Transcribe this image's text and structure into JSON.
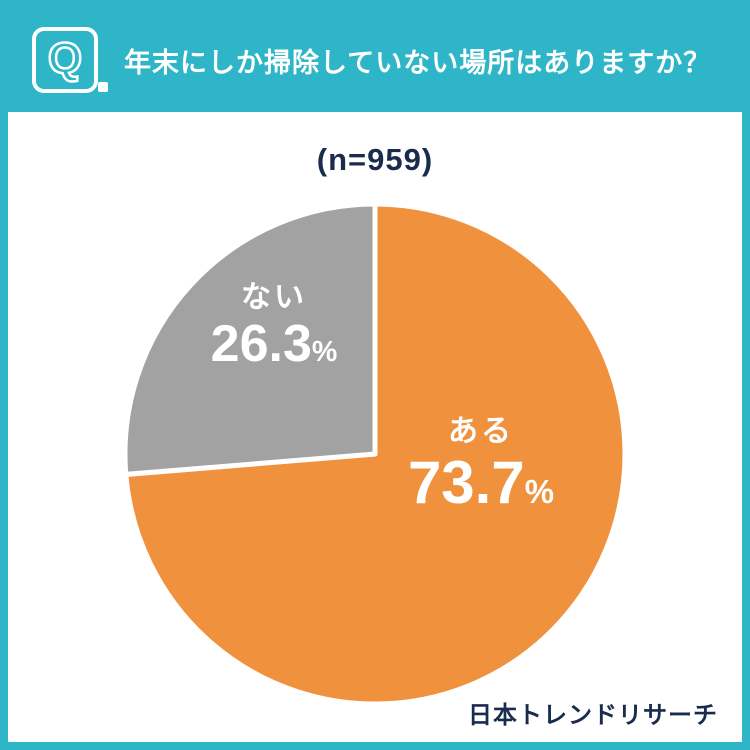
{
  "colors": {
    "teal": "#2fb5c8",
    "orange": "#f0913e",
    "gray": "#a2a2a2",
    "navy": "#1a2c4e",
    "white": "#ffffff"
  },
  "header": {
    "q_mark": "Q",
    "title": "年末にしか掃除していない場所はありますか？"
  },
  "sample_label": "(n=959)",
  "chart_data": {
    "type": "pie",
    "title": "年末にしか掃除していない場所はありますか？",
    "sample_size": 959,
    "unit": "%",
    "start_angle_deg": 0,
    "direction": "clockwise",
    "slices": [
      {
        "label": "ある",
        "value": 73.7,
        "color": "#f0913e",
        "text_color": "#ffffff"
      },
      {
        "label": "ない",
        "value": 26.3,
        "color": "#a2a2a2",
        "text_color": "#ffffff"
      }
    ]
  },
  "footer": {
    "source": "日本トレンドリサーチ"
  }
}
